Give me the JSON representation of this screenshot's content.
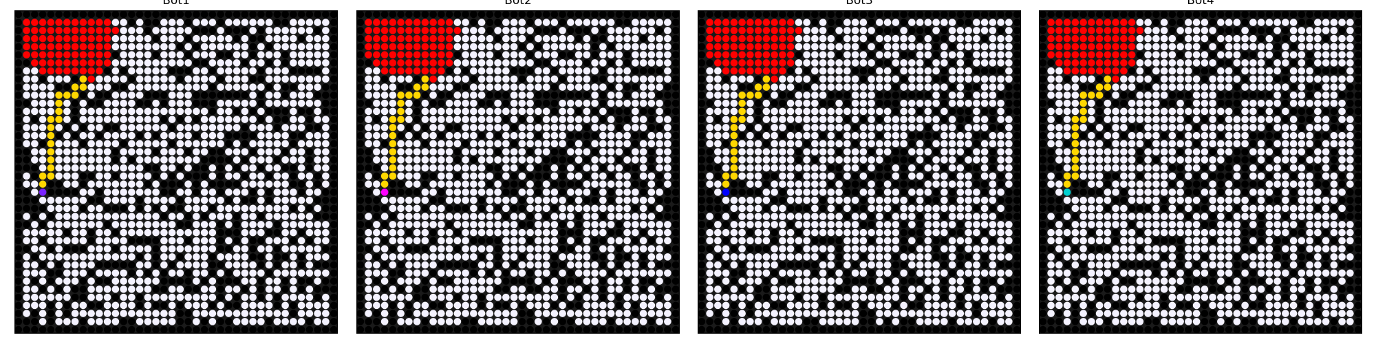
{
  "grid_size": 40,
  "colors": {
    "wall": "#000000",
    "open": "#f4f2ff",
    "fire": "#ff0000",
    "path": "#ffd700",
    "border": "#000000"
  },
  "fire_cells": [
    [
      1,
      1
    ],
    [
      2,
      1
    ],
    [
      3,
      1
    ],
    [
      4,
      1
    ],
    [
      5,
      1
    ],
    [
      6,
      1
    ],
    [
      7,
      1
    ],
    [
      8,
      1
    ],
    [
      9,
      1
    ],
    [
      10,
      1
    ],
    [
      11,
      1
    ],
    [
      1,
      2
    ],
    [
      2,
      2
    ],
    [
      3,
      2
    ],
    [
      4,
      2
    ],
    [
      5,
      2
    ],
    [
      6,
      2
    ],
    [
      7,
      2
    ],
    [
      8,
      2
    ],
    [
      9,
      2
    ],
    [
      10,
      2
    ],
    [
      11,
      2
    ],
    [
      12,
      2
    ],
    [
      1,
      3
    ],
    [
      2,
      3
    ],
    [
      3,
      3
    ],
    [
      4,
      3
    ],
    [
      5,
      3
    ],
    [
      6,
      3
    ],
    [
      7,
      3
    ],
    [
      8,
      3
    ],
    [
      9,
      3
    ],
    [
      10,
      3
    ],
    [
      11,
      3
    ],
    [
      1,
      4
    ],
    [
      2,
      4
    ],
    [
      3,
      4
    ],
    [
      4,
      4
    ],
    [
      5,
      4
    ],
    [
      6,
      4
    ],
    [
      7,
      4
    ],
    [
      8,
      4
    ],
    [
      9,
      4
    ],
    [
      10,
      4
    ],
    [
      11,
      4
    ],
    [
      1,
      5
    ],
    [
      2,
      5
    ],
    [
      3,
      5
    ],
    [
      4,
      5
    ],
    [
      5,
      5
    ],
    [
      6,
      5
    ],
    [
      7,
      5
    ],
    [
      8,
      5
    ],
    [
      9,
      5
    ],
    [
      10,
      5
    ],
    [
      11,
      5
    ],
    [
      2,
      6
    ],
    [
      3,
      6
    ],
    [
      4,
      6
    ],
    [
      5,
      6
    ],
    [
      6,
      6
    ],
    [
      7,
      6
    ],
    [
      8,
      6
    ],
    [
      9,
      6
    ],
    [
      10,
      6
    ],
    [
      11,
      6
    ],
    [
      3,
      7
    ],
    [
      4,
      7
    ],
    [
      5,
      7
    ],
    [
      6,
      7
    ],
    [
      7,
      7
    ],
    [
      8,
      7
    ],
    [
      9,
      7
    ],
    [
      10,
      7
    ],
    [
      8,
      8
    ],
    [
      9,
      8
    ]
  ],
  "path_cells": [
    [
      8,
      8
    ],
    [
      8,
      9
    ],
    [
      7,
      9
    ],
    [
      7,
      10
    ],
    [
      6,
      10
    ],
    [
      5,
      10
    ],
    [
      5,
      11
    ],
    [
      5,
      12
    ],
    [
      5,
      13
    ],
    [
      4,
      13
    ],
    [
      4,
      14
    ],
    [
      4,
      15
    ],
    [
      4,
      16
    ],
    [
      4,
      17
    ],
    [
      4,
      18
    ],
    [
      4,
      19
    ],
    [
      4,
      20
    ],
    [
      3,
      20
    ],
    [
      3,
      21
    ]
  ],
  "panels": [
    {
      "title": "Bot1",
      "bot_color": "#7a22ff",
      "bot_cell": [
        3,
        22
      ]
    },
    {
      "title": "Bot2",
      "bot_color": "#ff00ff",
      "bot_cell": [
        3,
        22
      ]
    },
    {
      "title": "Bot3",
      "bot_color": "#0000ff",
      "bot_cell": [
        3,
        22
      ]
    },
    {
      "title": "Bot4",
      "bot_color": "#00d0d0",
      "bot_cell": [
        3,
        22
      ]
    }
  ]
}
